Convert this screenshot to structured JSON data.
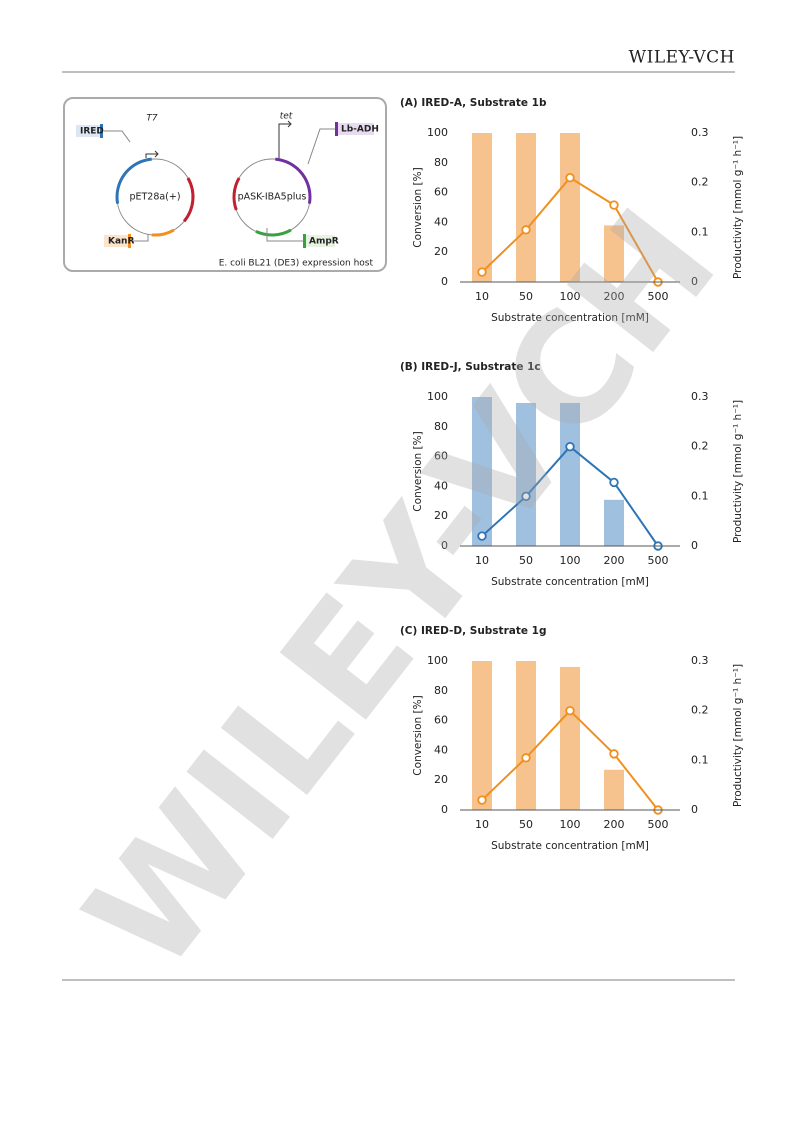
{
  "header": {
    "publisher": "WILEY-VCH"
  },
  "watermark": "WILEY-VCH",
  "diagram": {
    "plasmids": [
      {
        "name": "pET28a(+)",
        "promoter": "T7",
        "genes": [
          "IRED",
          "KanR"
        ]
      },
      {
        "name": "pASK-IBA5plus",
        "promoter": "tet",
        "genes": [
          "Lb-ADH",
          "AmpR"
        ]
      }
    ],
    "host": "E. coli BL21 (DE3) expression host"
  },
  "chart_data": [
    {
      "type": "bar",
      "title": "(A) IRED-A, Substrate 1b",
      "categories": [
        "10",
        "50",
        "100",
        "200",
        "500"
      ],
      "series": [
        {
          "color": "#f6c28e",
          "values": [
            100,
            100,
            100,
            38,
            0
          ]
        },
        {
          "type": "line",
          "axis": "y2",
          "color": "#f0901e",
          "values": [
            0.02,
            0.105,
            0.21,
            0.155,
            0
          ]
        }
      ],
      "xlabel": "Substrate concentration [mM]",
      "ylabel": "Conversion [%]",
      "y2label": "Productivity [mmol g⁻¹ h⁻¹]",
      "ylim": [
        0,
        100
      ],
      "yticks": [
        0,
        20,
        40,
        60,
        80,
        100
      ],
      "y2lim": [
        0,
        0.3
      ],
      "y2ticks": [
        0,
        0.1,
        0.2,
        0.3
      ],
      "grid": false
    },
    {
      "type": "bar",
      "title": "(B) IRED-J, Substrate 1c",
      "categories": [
        "10",
        "50",
        "100",
        "200",
        "500"
      ],
      "series": [
        {
          "color": "#a0c0e0",
          "values": [
            100,
            96,
            96,
            31,
            0
          ]
        },
        {
          "type": "line",
          "axis": "y2",
          "color": "#2f75b5",
          "values": [
            0.02,
            0.1,
            0.2,
            0.128,
            0
          ]
        }
      ],
      "xlabel": "Substrate concentration [mM]",
      "ylabel": "Conversion [%]",
      "y2label": "Productivity [mmol g⁻¹ h⁻¹]",
      "ylim": [
        0,
        100
      ],
      "yticks": [
        0,
        20,
        40,
        60,
        80,
        100
      ],
      "y2lim": [
        0,
        0.3
      ],
      "y2ticks": [
        0,
        0.1,
        0.2,
        0.3
      ],
      "grid": false
    },
    {
      "type": "bar",
      "title": "(C) IRED-D, Substrate 1g",
      "categories": [
        "10",
        "50",
        "100",
        "200",
        "500"
      ],
      "series": [
        {
          "color": "#f6c28e",
          "values": [
            100,
            100,
            96,
            27,
            0
          ]
        },
        {
          "type": "line",
          "axis": "y2",
          "color": "#f0901e",
          "values": [
            0.02,
            0.105,
            0.2,
            0.113,
            0
          ]
        }
      ],
      "xlabel": "Substrate concentration [mM]",
      "ylabel": "Conversion [%]",
      "y2label": "Productivity [mmol g⁻¹ h⁻¹]",
      "ylim": [
        0,
        100
      ],
      "yticks": [
        0,
        20,
        40,
        60,
        80,
        100
      ],
      "y2lim": [
        0,
        0.3
      ],
      "y2ticks": [
        0,
        0.1,
        0.2,
        0.3
      ],
      "grid": false
    }
  ]
}
